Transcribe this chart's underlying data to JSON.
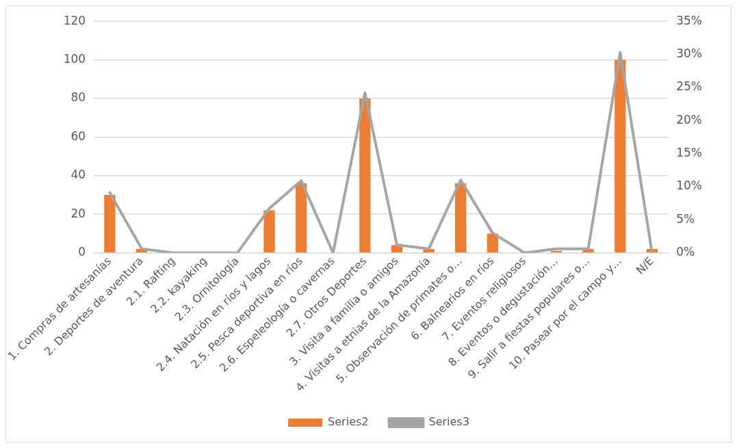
{
  "chart_data": {
    "type": "bar",
    "categories": [
      "1. Compras de artesanías",
      "2. Deportes de aventura",
      "2.1. Rafting",
      "2.2. kayaking",
      "2.3. Ornitología",
      "2.4. Natación en ríos y lagos",
      "2.5. Pesca deportiva en ríos",
      "2.6. Espeleología o cavernas",
      "2.7. Otros Deportes",
      "3. Visita a familia o amigos",
      "4. Visitas a etnias de la Amazonía",
      "5. Observación de primates o…",
      "6. Balnearios en ríos",
      "7. Eventos religiosos",
      "8. Eventos o degustación…",
      "9. Salir a fiestas populares o…",
      "10. Pasear por el campo y…",
      "N/E"
    ],
    "series": [
      {
        "name": "Series2",
        "color": "#ed7d31",
        "values": [
          30,
          2,
          0,
          0,
          0,
          22,
          36,
          0,
          80,
          4,
          2,
          36,
          10,
          0,
          1,
          2,
          100,
          2
        ]
      },
      {
        "name": "Series3",
        "type": "line",
        "axis": "y2",
        "color": "#a5a5a5",
        "values": [
          9.1,
          0.6,
          0,
          0,
          0,
          6.7,
          10.9,
          0,
          24.2,
          1.2,
          0.6,
          11,
          3,
          0,
          0.6,
          0.6,
          30.3,
          0
        ]
      }
    ],
    "ylim": [
      0,
      120
    ],
    "yticks": [
      0,
      20,
      40,
      60,
      80,
      100,
      120
    ],
    "y2lim": [
      0,
      35
    ],
    "y2ticks": [
      {
        "value": 0,
        "label": "0%"
      },
      {
        "value": 5,
        "label": "5%"
      },
      {
        "value": 10,
        "label": "10%"
      },
      {
        "value": 15,
        "label": "15%"
      },
      {
        "value": 20,
        "label": "20%"
      },
      {
        "value": 25,
        "label": "25%"
      },
      {
        "value": 30,
        "label": "30%"
      },
      {
        "value": 35,
        "label": "35%"
      }
    ],
    "grid": "y",
    "legend": "bottom",
    "marker": "none",
    "line_style": "solid"
  }
}
